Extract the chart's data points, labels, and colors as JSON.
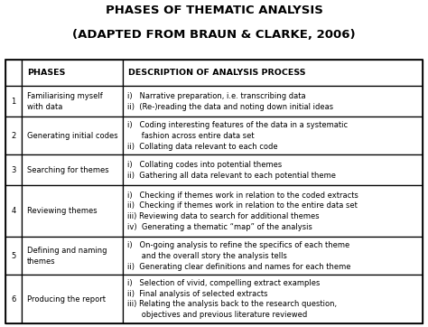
{
  "title_line1": "PHASES OF THEMATIC ANALYSIS",
  "title_line2": "(ADAPTED FROM BRAUN & CLARKE, 2006)",
  "header_col1": "PHASES",
  "header_col2": "DESCRIPTION OF ANALYSIS PROCESS",
  "rows": [
    {
      "num": "1",
      "phase": "Familiarising myself\nwith data",
      "description": "i)   Narrative preparation, i.e. transcribing data\nii)  (Re-)reading the data and noting down initial ideas"
    },
    {
      "num": "2",
      "phase": "Generating initial codes",
      "description": "i)   Coding interesting features of the data in a systematic\n      fashion across entire data set\nii)  Collating data relevant to each code"
    },
    {
      "num": "3",
      "phase": "Searching for themes",
      "description": "i)   Collating codes into potential themes\nii)  Gathering all data relevant to each potential theme"
    },
    {
      "num": "4",
      "phase": "Reviewing themes",
      "description": "i)   Checking if themes work in relation to the coded extracts\nii)  Checking if themes work in relation to the entire data set\niii) Reviewing data to search for additional themes\niv)  Generating a thematic “map” of the analysis"
    },
    {
      "num": "5",
      "phase": "Defining and naming\nthemes",
      "description": "i)   On-going analysis to refine the specifics of each theme\n      and the overall story the analysis tells\nii)  Generating clear definitions and names for each theme"
    },
    {
      "num": "6",
      "phase": "Producing the report",
      "description": "i)   Selection of vivid, compelling extract examples\nii)  Final analysis of selected extracts\niii) Relating the analysis back to the research question,\n      objectives and previous literature reviewed"
    }
  ],
  "bg_color": "#ffffff",
  "text_color": "#000000",
  "title_fontsize": 9.5,
  "header_fontsize": 6.8,
  "body_fontsize": 6.0,
  "fig_width": 4.74,
  "fig_height": 3.62,
  "dpi": 100
}
